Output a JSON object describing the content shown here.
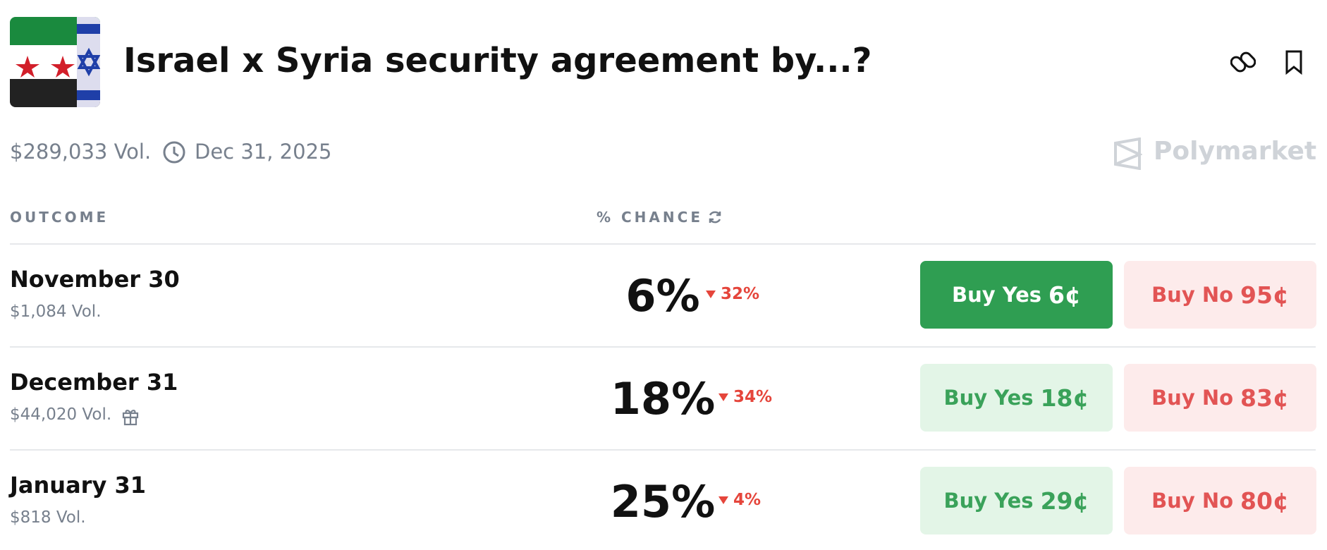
{
  "header": {
    "title": "Israel x Syria security agreement by...?",
    "volume": "$289,033 Vol.",
    "end_date": "Dec 31, 2025",
    "brand": "Polymarket"
  },
  "table": {
    "headers": [
      "OUTCOME",
      "% CHANCE"
    ],
    "rows": [
      {
        "name": "November 30",
        "volume": "$1,084 Vol.",
        "chance": "6%",
        "change": "32%",
        "yes_label": "Buy Yes",
        "yes_price": "6¢",
        "no_label": "Buy No",
        "no_price": "95¢"
      },
      {
        "name": "December 31",
        "volume": "$44,020 Vol.",
        "chance": "18%",
        "change": "34%",
        "yes_label": "Buy Yes",
        "yes_price": "18¢",
        "no_label": "Buy No",
        "no_price": "83¢"
      },
      {
        "name": "January 31",
        "volume": "$818 Vol.",
        "chance": "25%",
        "change": "4%",
        "yes_label": "Buy Yes",
        "yes_price": "29¢",
        "no_label": "Buy No",
        "no_price": "80¢"
      }
    ]
  }
}
